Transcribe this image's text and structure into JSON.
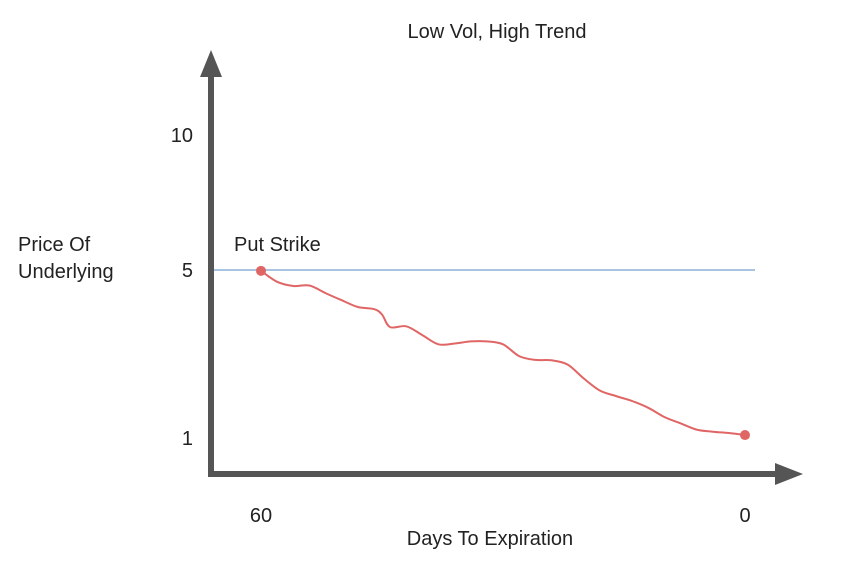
{
  "chart_data": {
    "type": "line",
    "title": "Low Vol, High Trend",
    "xlabel": "Days To Expiration",
    "ylabel_line1": "Price Of",
    "ylabel_line2": "Underlying",
    "x_ticks": [
      {
        "value": 60,
        "label": "60"
      },
      {
        "value": 0,
        "label": "0"
      }
    ],
    "y_ticks": [
      {
        "value": 10,
        "label": "10"
      },
      {
        "value": 5,
        "label": "5"
      },
      {
        "value": 1,
        "label": "1"
      }
    ],
    "reference_line": {
      "label": "Put Strike",
      "y": 5,
      "color": "#a8c4e0"
    },
    "series": [
      {
        "color": "#e06666",
        "points": [
          [
            60,
            4.98
          ],
          [
            58,
            4.72
          ],
          [
            56,
            4.62
          ],
          [
            54,
            4.63
          ],
          [
            52,
            4.45
          ],
          [
            50,
            4.28
          ],
          [
            48,
            4.12
          ],
          [
            46,
            4.07
          ],
          [
            45,
            3.94
          ],
          [
            44,
            3.64
          ],
          [
            42,
            3.66
          ],
          [
            40,
            3.45
          ],
          [
            38,
            3.23
          ],
          [
            36,
            3.25
          ],
          [
            34,
            3.3
          ],
          [
            32,
            3.3
          ],
          [
            30,
            3.23
          ],
          [
            28,
            2.95
          ],
          [
            26,
            2.86
          ],
          [
            24,
            2.85
          ],
          [
            22,
            2.75
          ],
          [
            20,
            2.42
          ],
          [
            18,
            2.13
          ],
          [
            16,
            2.0
          ],
          [
            14,
            1.88
          ],
          [
            12,
            1.72
          ],
          [
            10,
            1.5
          ],
          [
            8,
            1.35
          ],
          [
            6,
            1.2
          ],
          [
            4,
            1.15
          ],
          [
            2,
            1.12
          ],
          [
            0,
            1.07
          ]
        ]
      }
    ],
    "xlim": [
      60,
      0
    ],
    "ylim": [
      1,
      10
    ],
    "grid": false,
    "legend": "none"
  }
}
